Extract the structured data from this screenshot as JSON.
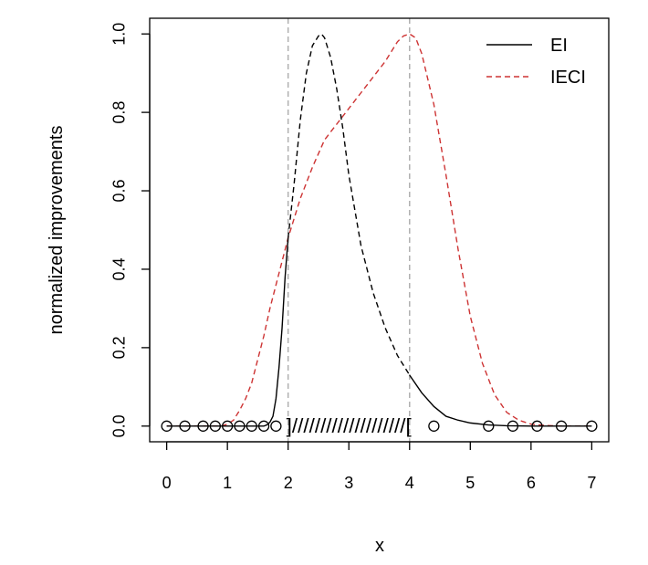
{
  "chart_data": {
    "type": "line",
    "title": "",
    "xlabel": "x",
    "ylabel": "normalized improvements",
    "xlim": [
      -0.28,
      7.28
    ],
    "ylim": [
      -0.04,
      1.04
    ],
    "x_ticks": [
      "0",
      "1",
      "2",
      "3",
      "4",
      "5",
      "6",
      "7"
    ],
    "y_ticks": [
      "0.0",
      "0.2",
      "0.4",
      "0.6",
      "0.8",
      "1.0"
    ],
    "legend": {
      "position": "top-right",
      "entries": [
        "EI",
        "IECI"
      ]
    },
    "vlines": [
      2,
      4
    ],
    "constraint_region": {
      "x_start": 2,
      "x_end": 4,
      "marks": "]////////////////////["
    },
    "series": [
      {
        "name": "EI",
        "color": "#000000",
        "style": "solid, dashed inside [2,4]",
        "x": [
          0,
          1.2,
          1.5,
          1.6,
          1.65,
          1.7,
          1.75,
          1.8,
          1.85,
          1.9,
          1.95,
          2.0,
          2.1,
          2.2,
          2.3,
          2.4,
          2.5,
          2.55,
          2.6,
          2.7,
          2.8,
          2.9,
          3.0,
          3.2,
          3.4,
          3.6,
          3.8,
          4.0,
          4.2,
          4.4,
          4.6,
          4.8,
          5.0,
          5.3,
          5.6,
          6.0,
          7.0
        ],
        "y": [
          0,
          0,
          0,
          0,
          0.003,
          0.01,
          0.025,
          0.07,
          0.15,
          0.25,
          0.38,
          0.48,
          0.62,
          0.78,
          0.9,
          0.97,
          0.995,
          1.0,
          0.99,
          0.94,
          0.86,
          0.76,
          0.64,
          0.46,
          0.34,
          0.25,
          0.18,
          0.13,
          0.085,
          0.05,
          0.025,
          0.015,
          0.008,
          0.003,
          0.001,
          0,
          0
        ]
      },
      {
        "name": "IECI",
        "color": "#cd3333",
        "style": "dashed",
        "x": [
          0,
          0.9,
          1.0,
          1.1,
          1.2,
          1.3,
          1.4,
          1.5,
          1.6,
          1.7,
          1.8,
          1.9,
          2.0,
          2.2,
          2.4,
          2.6,
          2.8,
          3.0,
          3.2,
          3.4,
          3.6,
          3.8,
          3.9,
          4.0,
          4.1,
          4.2,
          4.4,
          4.6,
          4.8,
          5.0,
          5.2,
          5.4,
          5.6,
          5.8,
          6.0,
          6.2,
          6.5,
          7.0
        ],
        "y": [
          0,
          0,
          0.005,
          0.015,
          0.04,
          0.07,
          0.11,
          0.17,
          0.23,
          0.3,
          0.36,
          0.42,
          0.48,
          0.58,
          0.66,
          0.73,
          0.77,
          0.81,
          0.85,
          0.89,
          0.93,
          0.98,
          0.995,
          1.0,
          0.99,
          0.95,
          0.82,
          0.64,
          0.45,
          0.28,
          0.16,
          0.08,
          0.035,
          0.015,
          0.005,
          0.002,
          0,
          0
        ]
      }
    ],
    "points": {
      "x": [
        0,
        0.3,
        0.6,
        0.8,
        1.0,
        1.2,
        1.4,
        1.6,
        1.8,
        4.4,
        5.3,
        5.7,
        6.1,
        6.5,
        7.0
      ],
      "y": [
        0,
        0,
        0,
        0,
        0,
        0,
        0,
        0,
        0,
        0,
        0,
        0,
        0,
        0,
        0
      ]
    }
  }
}
